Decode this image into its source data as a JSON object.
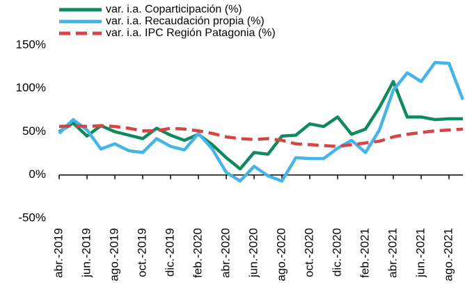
{
  "chart_data": {
    "type": "line",
    "categories": [
      "abr.-2019",
      null,
      "jun.-2019",
      null,
      "ago.-2019",
      null,
      "oct.-2019",
      null,
      "dic.-2019",
      null,
      "feb.-2020",
      null,
      "abr.-2020",
      null,
      "jun.-2020",
      null,
      "ago.-2020",
      null,
      "oct.-2020",
      null,
      "dic.-2020",
      null,
      "feb.-2021",
      null,
      "abr.-2021",
      null,
      "jun.-2021",
      null,
      "ago.-2021",
      null
    ],
    "series": [
      {
        "name": "var. i.a. Coparticipación (%)",
        "color": "#0f8a5f",
        "dash": false,
        "values": [
          50,
          60,
          45,
          57,
          50,
          46,
          42,
          54,
          46,
          40,
          47,
          35,
          20,
          7,
          26,
          24,
          45,
          46,
          59,
          56,
          67,
          47,
          53,
          78,
          108,
          67,
          67,
          64,
          65,
          65
        ]
      },
      {
        "name": "var. i.a. Recaudación propia (%)",
        "color": "#45b4e6",
        "dash": false,
        "values": [
          48,
          64,
          52,
          30,
          36,
          28,
          26,
          42,
          33,
          29,
          48,
          30,
          3,
          -7,
          10,
          -1,
          -7,
          20,
          19,
          19,
          31,
          40,
          26,
          52,
          98,
          118,
          108,
          130,
          129,
          87
        ]
      },
      {
        "name": "var. i.a. IPC Región Patagonia (%)",
        "color": "#d64545",
        "dash": true,
        "values": [
          56,
          57,
          56,
          57,
          56,
          54,
          51,
          51,
          54,
          53,
          51,
          48,
          44,
          42,
          41,
          42,
          40,
          36,
          35,
          34,
          33,
          35,
          37,
          39,
          44,
          47,
          49,
          51,
          52,
          53
        ]
      }
    ],
    "ylim": [
      -50,
      150
    ],
    "yticks": [
      {
        "value": -50,
        "label": "-50%"
      },
      {
        "value": 0,
        "label": "0%"
      },
      {
        "value": 50,
        "label": "50%"
      },
      {
        "value": 100,
        "label": "100%"
      },
      {
        "value": 150,
        "label": "150%"
      }
    ],
    "grid": false,
    "legend": "top"
  }
}
